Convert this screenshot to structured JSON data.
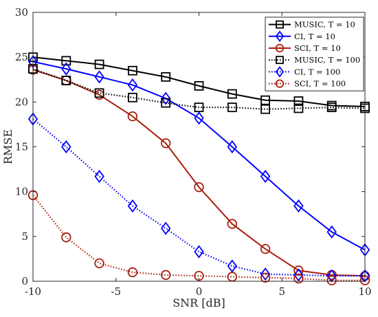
{
  "chart_data": {
    "type": "line",
    "xlabel": "SNR [dB]",
    "ylabel": "RMSE",
    "x": [
      -10,
      -8,
      -6,
      -4,
      -2,
      0,
      2,
      4,
      6,
      8,
      10
    ],
    "xlim": [
      -10,
      10
    ],
    "ylim": [
      0,
      30
    ],
    "xticks": [
      -10,
      -5,
      0,
      5,
      10
    ],
    "yticks": [
      0,
      5,
      10,
      15,
      20,
      25,
      30
    ],
    "xtick_labels": [
      "-10",
      "-5",
      "0",
      "5",
      "10"
    ],
    "ytick_labels": [
      "0",
      "5",
      "10",
      "15",
      "20",
      "25",
      "30"
    ],
    "grid": false,
    "legend_position": "top-right",
    "series": [
      {
        "name": "MUSIC, T = 10",
        "color": "#000000",
        "linestyle": "solid",
        "marker": "square",
        "values": [
          25.0,
          24.6,
          24.2,
          23.5,
          22.8,
          21.8,
          20.9,
          20.2,
          20.1,
          19.6,
          19.5
        ]
      },
      {
        "name": "CI, T = 10",
        "color": "#0000ff",
        "linestyle": "solid",
        "marker": "diamond",
        "values": [
          24.5,
          23.7,
          22.8,
          21.9,
          20.4,
          18.2,
          15.0,
          11.7,
          8.4,
          5.5,
          3.5
        ]
      },
      {
        "name": "SCI, T = 10",
        "color": "#a81e0f",
        "linestyle": "solid",
        "marker": "circle",
        "values": [
          23.6,
          22.4,
          20.8,
          18.4,
          15.4,
          10.5,
          6.4,
          3.6,
          1.2,
          0.7,
          0.6
        ]
      },
      {
        "name": "MUSIC, T = 100",
        "color": "#000000",
        "linestyle": "dotted",
        "marker": "square",
        "values": [
          23.7,
          22.4,
          21.0,
          20.5,
          19.9,
          19.4,
          19.4,
          19.2,
          19.3,
          19.4,
          19.3
        ]
      },
      {
        "name": "CI, T = 100",
        "color": "#0000ff",
        "linestyle": "dotted",
        "marker": "diamond",
        "values": [
          18.1,
          15.0,
          11.7,
          8.4,
          5.9,
          3.3,
          1.7,
          0.8,
          0.7,
          0.6,
          0.6
        ]
      },
      {
        "name": "SCI, T = 100",
        "color": "#a81e0f",
        "linestyle": "dotted",
        "marker": "circle",
        "values": [
          9.6,
          4.9,
          2.0,
          1.0,
          0.7,
          0.6,
          0.5,
          0.4,
          0.3,
          0.1,
          0.1
        ]
      }
    ]
  }
}
